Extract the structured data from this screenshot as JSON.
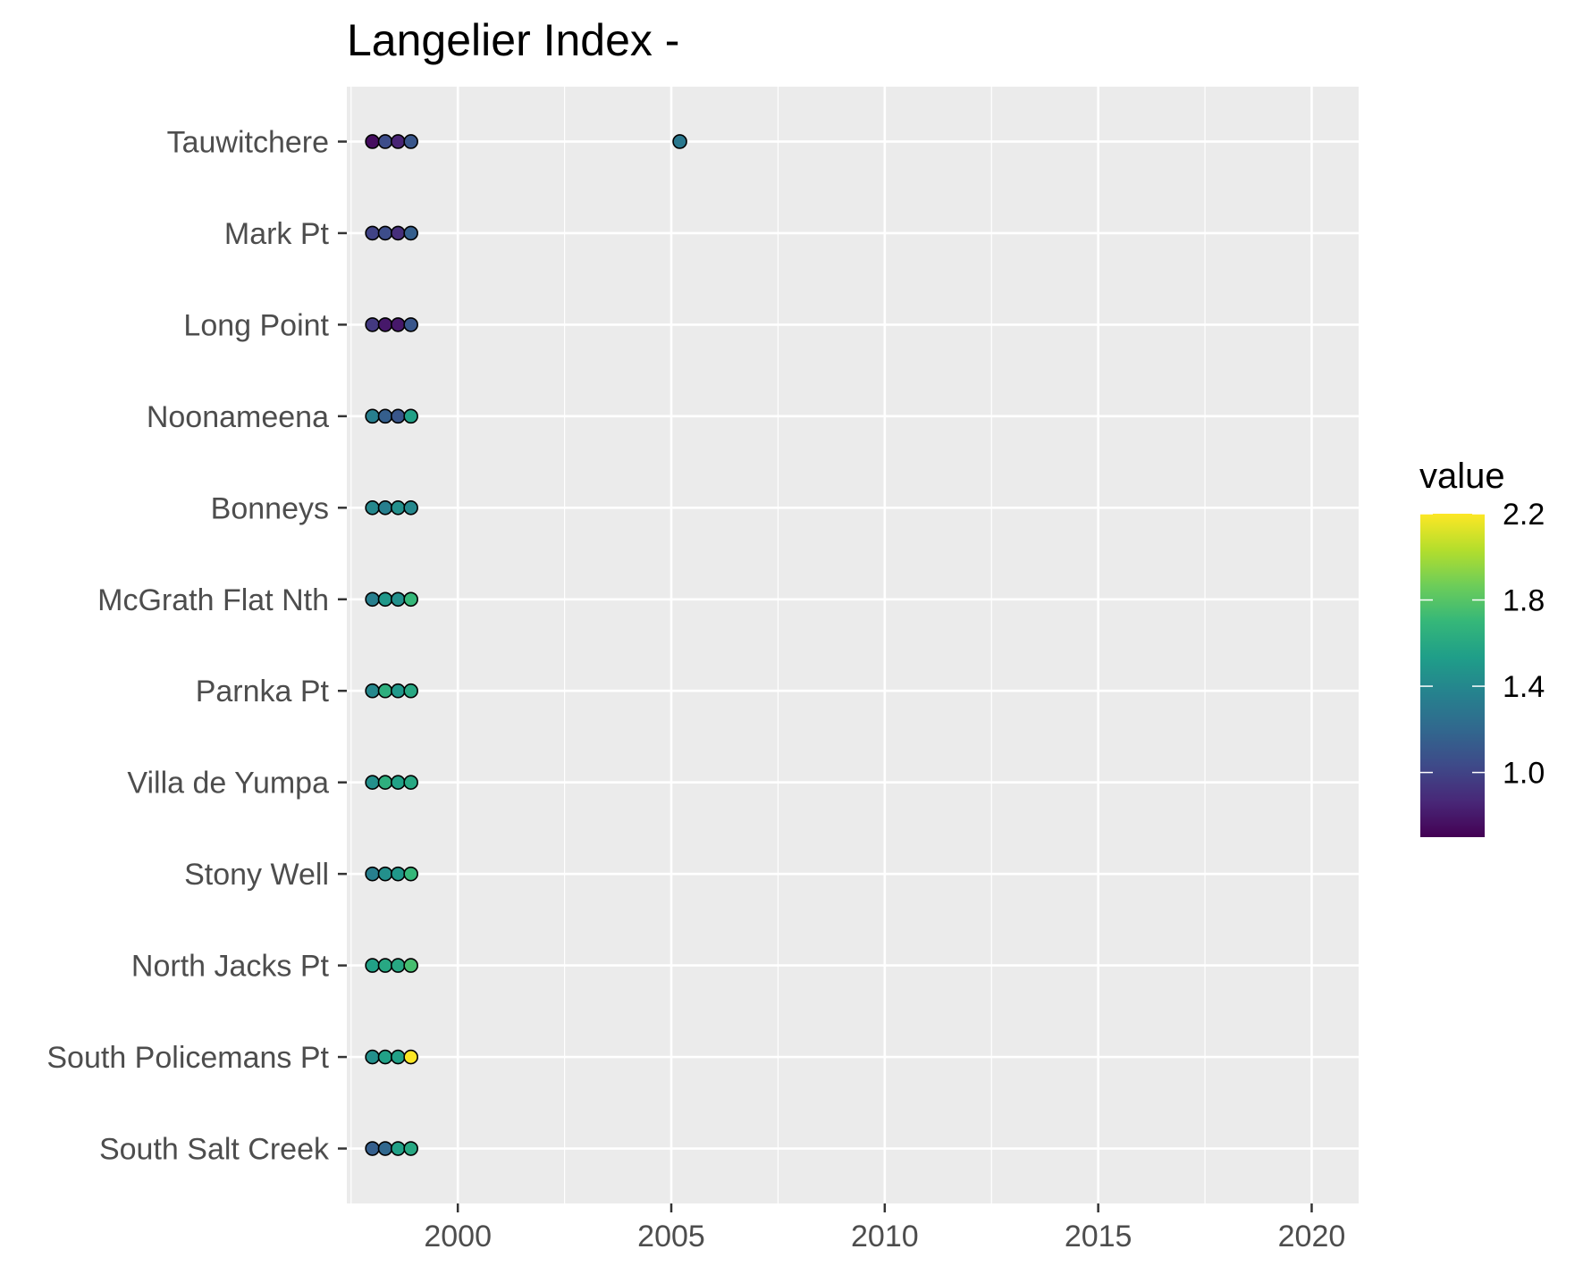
{
  "chart_data": {
    "type": "scatter",
    "title": "Langelier Index -",
    "xlabel": "",
    "ylabel": "",
    "xlim": [
      1997.4,
      2021.1
    ],
    "x_ticks": [
      2000,
      2005,
      2010,
      2015,
      2020
    ],
    "grid": true,
    "categories": [
      "Tauwitchere",
      "Mark Pt",
      "Long Point",
      "Noonameena",
      "Bonneys",
      "McGrath Flat Nth",
      "Parnka Pt",
      "Villa de Yumpa",
      "Stony Well",
      "North Jacks Pt",
      "South Policemans Pt",
      "South Salt Creek"
    ],
    "points": [
      {
        "site": "Tauwitchere",
        "x": 1998.0,
        "value": 0.75
      },
      {
        "site": "Tauwitchere",
        "x": 1998.3,
        "value": 1.05
      },
      {
        "site": "Tauwitchere",
        "x": 1998.6,
        "value": 0.85
      },
      {
        "site": "Tauwitchere",
        "x": 1998.9,
        "value": 1.1
      },
      {
        "site": "Tauwitchere",
        "x": 2005.2,
        "value": 1.3
      },
      {
        "site": "Mark Pt",
        "x": 1998.0,
        "value": 1.0
      },
      {
        "site": "Mark Pt",
        "x": 1998.3,
        "value": 1.05
      },
      {
        "site": "Mark Pt",
        "x": 1998.6,
        "value": 0.9
      },
      {
        "site": "Mark Pt",
        "x": 1998.9,
        "value": 1.15
      },
      {
        "site": "Long Point",
        "x": 1998.0,
        "value": 0.95
      },
      {
        "site": "Long Point",
        "x": 1998.3,
        "value": 0.8
      },
      {
        "site": "Long Point",
        "x": 1998.6,
        "value": 0.8
      },
      {
        "site": "Long Point",
        "x": 1998.9,
        "value": 1.1
      },
      {
        "site": "Noonameena",
        "x": 1998.0,
        "value": 1.35
      },
      {
        "site": "Noonameena",
        "x": 1998.3,
        "value": 1.15
      },
      {
        "site": "Noonameena",
        "x": 1998.6,
        "value": 1.1
      },
      {
        "site": "Noonameena",
        "x": 1998.9,
        "value": 1.55
      },
      {
        "site": "Bonneys",
        "x": 1998.0,
        "value": 1.4
      },
      {
        "site": "Bonneys",
        "x": 1998.3,
        "value": 1.35
      },
      {
        "site": "Bonneys",
        "x": 1998.6,
        "value": 1.45
      },
      {
        "site": "Bonneys",
        "x": 1998.9,
        "value": 1.4
      },
      {
        "site": "McGrath Flat Nth",
        "x": 1998.0,
        "value": 1.35
      },
      {
        "site": "McGrath Flat Nth",
        "x": 1998.3,
        "value": 1.5
      },
      {
        "site": "McGrath Flat Nth",
        "x": 1998.6,
        "value": 1.45
      },
      {
        "site": "McGrath Flat Nth",
        "x": 1998.9,
        "value": 1.7
      },
      {
        "site": "Parnka Pt",
        "x": 1998.0,
        "value": 1.4
      },
      {
        "site": "Parnka Pt",
        "x": 1998.3,
        "value": 1.65
      },
      {
        "site": "Parnka Pt",
        "x": 1998.6,
        "value": 1.5
      },
      {
        "site": "Parnka Pt",
        "x": 1998.9,
        "value": 1.6
      },
      {
        "site": "Villa de Yumpa",
        "x": 1998.0,
        "value": 1.45
      },
      {
        "site": "Villa de Yumpa",
        "x": 1998.3,
        "value": 1.65
      },
      {
        "site": "Villa de Yumpa",
        "x": 1998.6,
        "value": 1.55
      },
      {
        "site": "Villa de Yumpa",
        "x": 1998.9,
        "value": 1.6
      },
      {
        "site": "Stony Well",
        "x": 1998.0,
        "value": 1.35
      },
      {
        "site": "Stony Well",
        "x": 1998.3,
        "value": 1.45
      },
      {
        "site": "Stony Well",
        "x": 1998.6,
        "value": 1.5
      },
      {
        "site": "Stony Well",
        "x": 1998.9,
        "value": 1.7
      },
      {
        "site": "North Jacks Pt",
        "x": 1998.0,
        "value": 1.55
      },
      {
        "site": "North Jacks Pt",
        "x": 1998.3,
        "value": 1.6
      },
      {
        "site": "North Jacks Pt",
        "x": 1998.6,
        "value": 1.6
      },
      {
        "site": "North Jacks Pt",
        "x": 1998.9,
        "value": 1.75
      },
      {
        "site": "South Policemans Pt",
        "x": 1998.0,
        "value": 1.45
      },
      {
        "site": "South Policemans Pt",
        "x": 1998.3,
        "value": 1.55
      },
      {
        "site": "South Policemans Pt",
        "x": 1998.6,
        "value": 1.55
      },
      {
        "site": "South Policemans Pt",
        "x": 1998.9,
        "value": 2.2
      },
      {
        "site": "South Salt Creek",
        "x": 1998.0,
        "value": 1.15
      },
      {
        "site": "South Salt Creek",
        "x": 1998.3,
        "value": 1.2
      },
      {
        "site": "South Salt Creek",
        "x": 1998.6,
        "value": 1.55
      },
      {
        "site": "South Salt Creek",
        "x": 1998.9,
        "value": 1.6
      }
    ],
    "legend": {
      "title": "value",
      "placement": "right",
      "colormap": "viridis",
      "range": [
        0.7,
        2.2
      ],
      "ticks": [
        1.0,
        1.4,
        1.8,
        2.2
      ]
    }
  }
}
